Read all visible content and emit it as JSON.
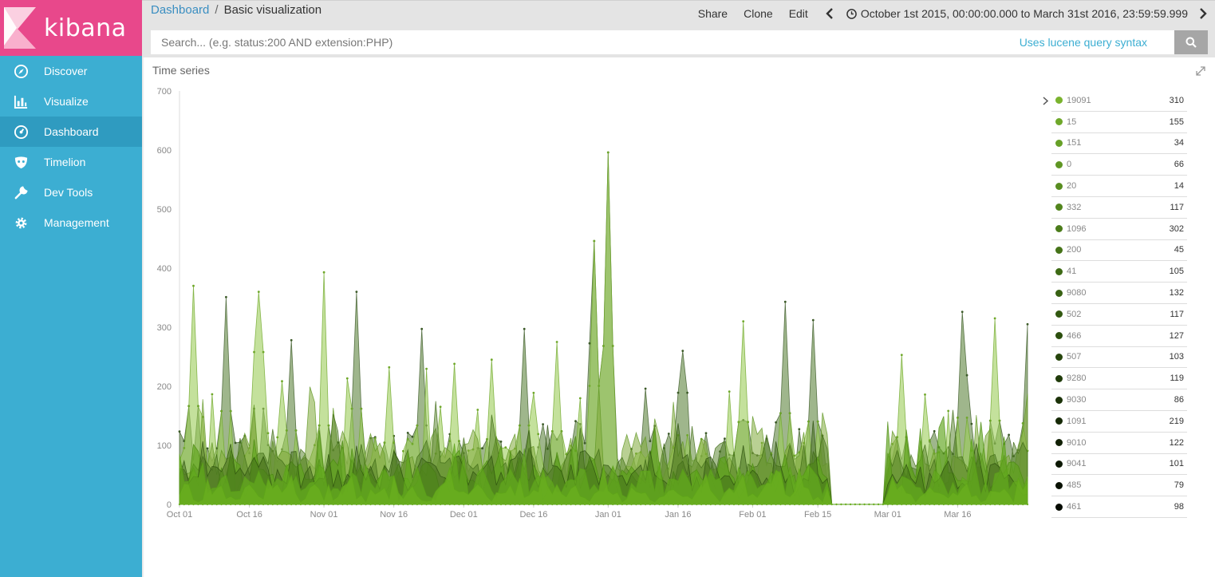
{
  "app": {
    "brand": "kibana"
  },
  "sidebar": {
    "items": [
      {
        "label": "Discover",
        "icon": "compass-icon",
        "active": false
      },
      {
        "label": "Visualize",
        "icon": "bar-chart-icon",
        "active": false
      },
      {
        "label": "Dashboard",
        "icon": "dashboard-gauge-icon",
        "active": true
      },
      {
        "label": "Timelion",
        "icon": "timelion-mask-icon",
        "active": false
      },
      {
        "label": "Dev Tools",
        "icon": "wrench-icon",
        "active": false
      },
      {
        "label": "Management",
        "icon": "gear-icon",
        "active": false
      }
    ]
  },
  "breadcrumb": {
    "parent": "Dashboard",
    "separator": "/",
    "current": "Basic visualization"
  },
  "toolbar": {
    "share": "Share",
    "clone": "Clone",
    "edit": "Edit",
    "time_range": "October 1st 2015, 00:00:00.000 to March 31st 2016, 23:59:59.999"
  },
  "search": {
    "placeholder": "Search... (e.g. status:200 AND extension:PHP)",
    "value": "",
    "syntax_link": "Uses lucene query syntax"
  },
  "panel": {
    "title": "Time series"
  },
  "colors": {
    "sidebar": "#3caed2",
    "sidebar_active": "#2f9bc0",
    "logo": "#e8488b",
    "topbar": "#e4e4e4",
    "link": "#3a8ec1"
  },
  "legend": {
    "items": [
      {
        "name": "19091",
        "value": "310",
        "color": "#7ab32e"
      },
      {
        "name": "15",
        "value": "155",
        "color": "#6fa82a"
      },
      {
        "name": "151",
        "value": "34",
        "color": "#67a027"
      },
      {
        "name": "0",
        "value": "66",
        "color": "#5f9623"
      },
      {
        "name": "20",
        "value": "14",
        "color": "#588d20"
      },
      {
        "name": "332",
        "value": "117",
        "color": "#52851d"
      },
      {
        "name": "1096",
        "value": "302",
        "color": "#4b7c1a"
      },
      {
        "name": "200",
        "value": "45",
        "color": "#457318"
      },
      {
        "name": "41",
        "value": "105",
        "color": "#3e6a15"
      },
      {
        "name": "9080",
        "value": "132",
        "color": "#386113"
      },
      {
        "name": "502",
        "value": "117",
        "color": "#325810"
      },
      {
        "name": "466",
        "value": "127",
        "color": "#2c4f0e"
      },
      {
        "name": "507",
        "value": "103",
        "color": "#26450c"
      },
      {
        "name": "9280",
        "value": "119",
        "color": "#203b0a"
      },
      {
        "name": "9030",
        "value": "86",
        "color": "#1b3208"
      },
      {
        "name": "1091",
        "value": "219",
        "color": "#162906"
      },
      {
        "name": "9010",
        "value": "122",
        "color": "#112004"
      },
      {
        "name": "9041",
        "value": "101",
        "color": "#0c1803"
      },
      {
        "name": "485",
        "value": "79",
        "color": "#081102"
      },
      {
        "name": "461",
        "value": "98",
        "color": "#050a01"
      }
    ]
  },
  "chart_data": {
    "type": "area",
    "title": "Time series",
    "xlabel": "",
    "ylabel": "",
    "x_ticks": [
      "Oct 01",
      "Oct 16",
      "Nov 01",
      "Nov 16",
      "Dec 01",
      "Dec 16",
      "Jan 01",
      "Jan 16",
      "Feb 01",
      "Feb 15",
      "Mar 01",
      "Mar 16"
    ],
    "y_ticks": [
      0,
      100,
      200,
      300,
      400,
      500,
      600,
      700
    ],
    "ylim": [
      0,
      700
    ],
    "x_range": [
      "2015-10-01",
      "2016-03-31"
    ],
    "grid": false,
    "legend_position": "right",
    "peaks": [
      {
        "date": "2015-10-04",
        "value": 370
      },
      {
        "date": "2015-10-11",
        "value": 351
      },
      {
        "date": "2015-10-18",
        "value": 360
      },
      {
        "date": "2015-10-25",
        "value": 278
      },
      {
        "date": "2015-11-01",
        "value": 297
      },
      {
        "date": "2015-11-08",
        "value": 360
      },
      {
        "date": "2015-11-15",
        "value": 232
      },
      {
        "date": "2015-11-22",
        "value": 297
      },
      {
        "date": "2015-11-29",
        "value": 238
      },
      {
        "date": "2015-12-07",
        "value": 245
      },
      {
        "date": "2015-12-14",
        "value": 297
      },
      {
        "date": "2015-12-21",
        "value": 275
      },
      {
        "date": "2015-12-29",
        "value": 446
      },
      {
        "date": "2016-01-01",
        "value": 596
      },
      {
        "date": "2016-01-09",
        "value": 196
      },
      {
        "date": "2016-01-17",
        "value": 260
      },
      {
        "date": "2016-01-30",
        "value": 310
      },
      {
        "date": "2016-02-08",
        "value": 343
      },
      {
        "date": "2016-02-14",
        "value": 312
      },
      {
        "date": "2016-03-04",
        "value": 253
      },
      {
        "date": "2016-03-17",
        "value": 326
      },
      {
        "date": "2016-03-24",
        "value": 315
      },
      {
        "date": "2016-03-31",
        "value": 305
      }
    ],
    "gap": {
      "start": "2016-02-18",
      "end": "2016-02-29",
      "value": 0
    }
  }
}
